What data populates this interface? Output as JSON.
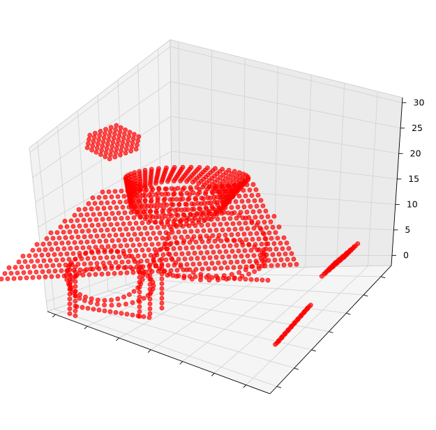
{
  "chart_data": {
    "type": "scatter3d",
    "title": "",
    "xlabel": "",
    "ylabel": "",
    "zlabel": "",
    "z_ticks": [
      "0",
      "5",
      "10",
      "15",
      "20",
      "25",
      "30"
    ],
    "zlim": [
      -2,
      31
    ],
    "x_tick_labels_shown": false,
    "y_tick_labels_shown": false,
    "grid": true,
    "legend": "none",
    "marker_color": "#ff0000",
    "marker_alpha": 0.65,
    "series": [
      {
        "description_visible": "car-body",
        "shape": "car-shaped hollow shell of voxel points, height from ~0 to ~15"
      },
      {
        "description_visible": "floating-roof-patch",
        "shape": "flat hexagonal patch near z≈24"
      },
      {
        "description_visible": "ground-patch-right",
        "shape": "small slanted patch near z≈0 on right wall side"
      },
      {
        "description_visible": "ground-patch-front",
        "shape": "narrow slanted strip near z≈0 at front right"
      }
    ]
  },
  "colors": {
    "pane_left": "#f2f2f2",
    "pane_back": "#ebebeb",
    "pane_floor": "#f5f5f5",
    "grid": "#d4d4d4",
    "edge": "#c8c8c8",
    "axis": "#000000",
    "point": "#ff0000"
  }
}
